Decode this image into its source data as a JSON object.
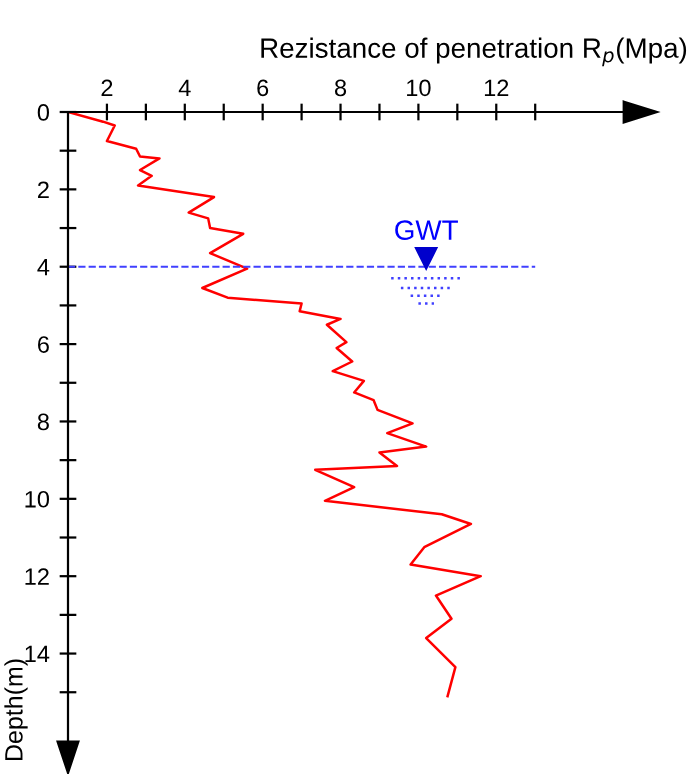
{
  "chart_data": {
    "type": "line",
    "xlabel": "Rezistance of penetration R$_{p}$(Mpa)",
    "ylabel": "Depth(m)",
    "xlim": [
      1,
      16
    ],
    "ylim": [
      16.7,
      0
    ],
    "xticks": [
      2,
      {
        "value": 3,
        "label": null
      },
      4,
      {
        "value": 5,
        "label": null
      },
      6,
      {
        "value": 7,
        "label": null
      },
      8,
      {
        "value": 9,
        "label": null
      },
      10,
      {
        "value": 11,
        "label": null
      },
      12,
      {
        "value": 13,
        "label": null
      }
    ],
    "yticks": [
      0,
      {
        "value": 1,
        "label": null
      },
      2,
      {
        "value": 3,
        "label": null
      },
      4,
      {
        "value": 5,
        "label": null
      },
      6,
      {
        "value": 7,
        "label": null
      },
      8,
      {
        "value": 9,
        "label": null
      },
      10,
      {
        "value": 11,
        "label": null
      },
      12,
      {
        "value": 13,
        "label": null
      },
      14,
      {
        "value": 15,
        "label": null
      }
    ],
    "grid": false,
    "legend": false,
    "marker": "none",
    "line_style": "solid",
    "series": [
      {
        "color": "#ff0000",
        "x": [
          1.0,
          1.9,
          2.2,
          2.0,
          2.75,
          2.85,
          3.35,
          2.85,
          3.15,
          2.8,
          4.75,
          4.1,
          4.6,
          4.65,
          5.5,
          4.65,
          5.6,
          4.45,
          5.1,
          7.0,
          6.95,
          8.0,
          7.65,
          8.15,
          7.9,
          8.3,
          7.8,
          8.6,
          8.35,
          8.85,
          8.95,
          9.85,
          9.2,
          10.2,
          9.0,
          9.45,
          7.35,
          8.35,
          7.6,
          10.6,
          11.35,
          10.15,
          9.8,
          11.6,
          10.45,
          10.85,
          10.2,
          10.95,
          10.75
        ],
        "values": [
          0,
          0.25,
          0.35,
          0.75,
          0.95,
          1.15,
          1.2,
          1.5,
          1.65,
          1.9,
          2.2,
          2.6,
          2.75,
          3.0,
          3.15,
          3.65,
          4.05,
          4.55,
          4.8,
          4.95,
          5.15,
          5.35,
          5.5,
          5.95,
          6.1,
          6.45,
          6.7,
          6.95,
          7.25,
          7.45,
          7.7,
          8.05,
          8.3,
          8.65,
          8.8,
          9.15,
          9.25,
          9.7,
          10.05,
          10.4,
          10.65,
          11.25,
          11.7,
          12.0,
          12.5,
          13.1,
          13.6,
          14.35,
          15.1
        ]
      }
    ],
    "ref_lines": [
      {
        "axis": "y",
        "value": 4,
        "label": "GWT",
        "color": "#4040ff",
        "line_style": "dashed"
      }
    ]
  }
}
